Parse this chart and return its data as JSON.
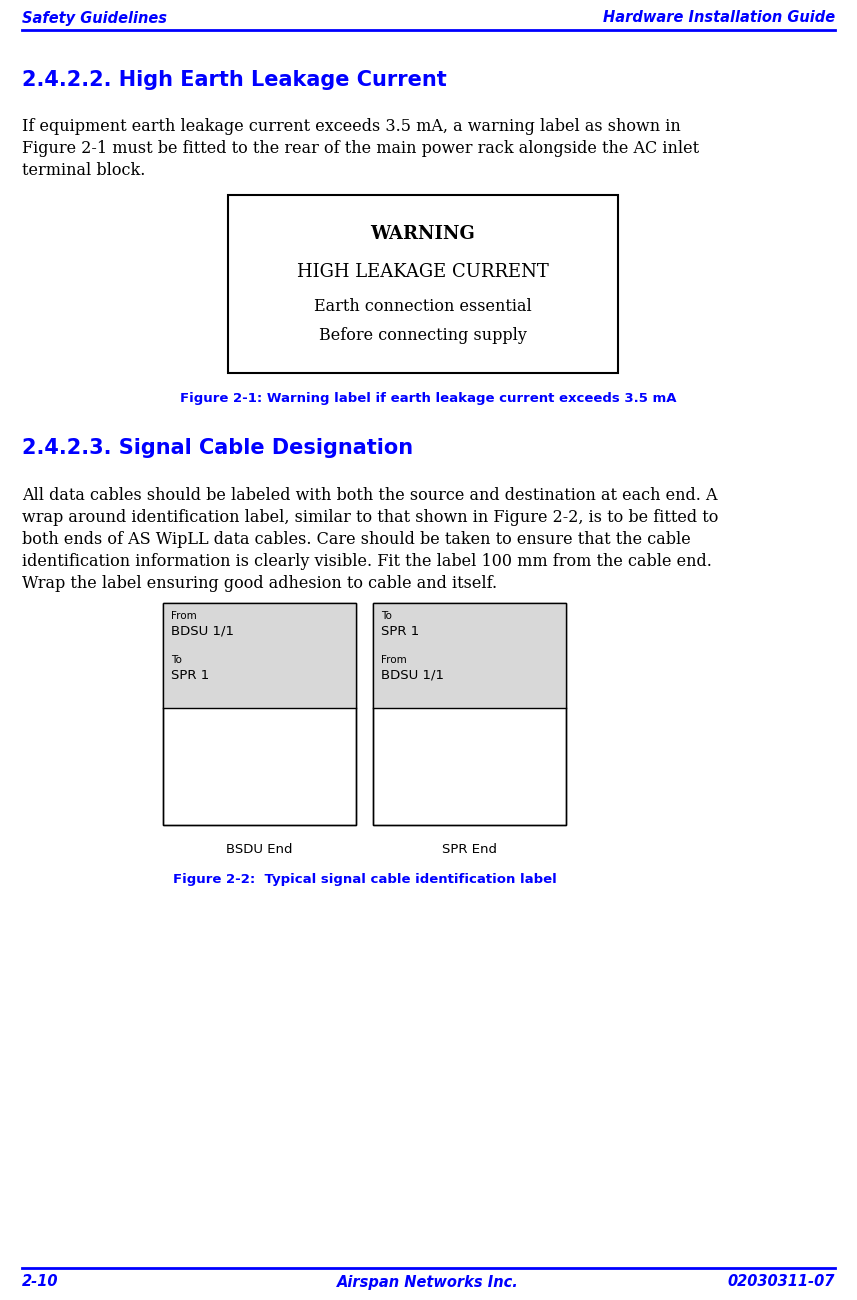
{
  "header_left": "Safety Guidelines",
  "header_right": "Hardware Installation Guide",
  "footer_left": "2-10",
  "footer_center": "Airspan Networks Inc.",
  "footer_right": "02030311-07",
  "blue_color": "#0000FF",
  "text_color": "#000000",
  "bg_color": "#ffffff",
  "gray_color": "#d8d8d8",
  "section1_title": "2.4.2.2. High Earth Leakage Current",
  "section1_body_lines": [
    "If equipment earth leakage current exceeds 3.5 mA, a warning label as shown in",
    "Figure 2-1 must be fitted to the rear of the main power rack alongside the AC inlet",
    "terminal block."
  ],
  "warning_line1": "WARNING",
  "warning_line2": "HIGH LEAKAGE CURRENT",
  "warning_line3": "Earth connection essential",
  "warning_line4": "Before connecting supply",
  "fig1_caption": "Figure 2-1: Warning label if earth leakage current exceeds 3.5 mA",
  "section2_title": "2.4.2.3. Signal Cable Designation",
  "section2_body_lines": [
    "All data cables should be labeled with both the source and destination at each end. A",
    "wrap around identification label, similar to that shown in Figure 2-2, is to be fitted to",
    "both ends of AS WipLL data cables. Care should be taken to ensure that the cable",
    "identification information is clearly visible. Fit the label 100 mm from the cable end.",
    "Wrap the label ensuring good adhesion to cable and itself."
  ],
  "left_box_from_label": "From",
  "left_box_from_val": "BDSU 1/1",
  "left_box_to_label": "To",
  "left_box_to_val": "SPR 1",
  "right_box_to_label": "To",
  "right_box_to_val": "SPR 1",
  "right_box_from_label": "From",
  "right_box_from_val": "BDSU 1/1",
  "cable_left_footer": "BSDU End",
  "cable_right_footer": "SPR End",
  "fig2_caption": "Figure 2-2:  Typical signal cable identification label"
}
